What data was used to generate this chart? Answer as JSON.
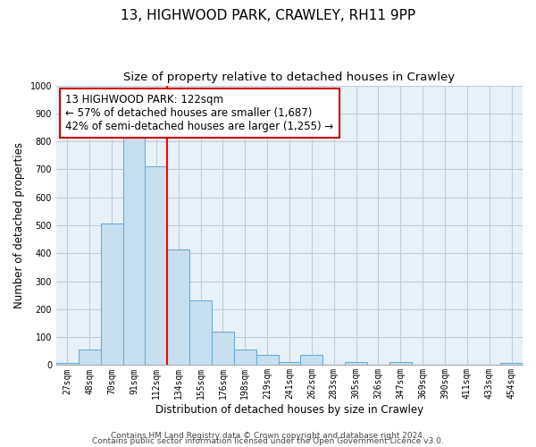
{
  "title": "13, HIGHWOOD PARK, CRAWLEY, RH11 9PP",
  "subtitle": "Size of property relative to detached houses in Crawley",
  "xlabel": "Distribution of detached houses by size in Crawley",
  "ylabel": "Number of detached properties",
  "bar_labels": [
    "27sqm",
    "48sqm",
    "70sqm",
    "91sqm",
    "112sqm",
    "134sqm",
    "155sqm",
    "176sqm",
    "198sqm",
    "219sqm",
    "241sqm",
    "262sqm",
    "283sqm",
    "305sqm",
    "326sqm",
    "347sqm",
    "369sqm",
    "390sqm",
    "411sqm",
    "433sqm",
    "454sqm"
  ],
  "bar_values": [
    7,
    57,
    505,
    820,
    710,
    415,
    230,
    118,
    57,
    35,
    12,
    35,
    0,
    12,
    0,
    12,
    0,
    0,
    0,
    0,
    7
  ],
  "bar_color": "#c8dff0",
  "bar_edge_color": "#6baed6",
  "vline_x": 4.5,
  "vline_color": "red",
  "annotation_text": "13 HIGHWOOD PARK: 122sqm\n← 57% of detached houses are smaller (1,687)\n42% of semi-detached houses are larger (1,255) →",
  "annotation_box_color": "#ffffff",
  "annotation_box_edge": "#cc0000",
  "ylim": [
    0,
    1000
  ],
  "yticks": [
    0,
    100,
    200,
    300,
    400,
    500,
    600,
    700,
    800,
    900,
    1000
  ],
  "plot_bg_color": "#e8f0f8",
  "grid_color": "#c0ccd8",
  "footer1": "Contains HM Land Registry data © Crown copyright and database right 2024.",
  "footer2": "Contains public sector information licensed under the Open Government Licence v3.0.",
  "title_fontsize": 11,
  "subtitle_fontsize": 9.5,
  "axis_label_fontsize": 8.5,
  "tick_fontsize": 7,
  "annotation_fontsize": 8.5,
  "footer_fontsize": 6.5
}
